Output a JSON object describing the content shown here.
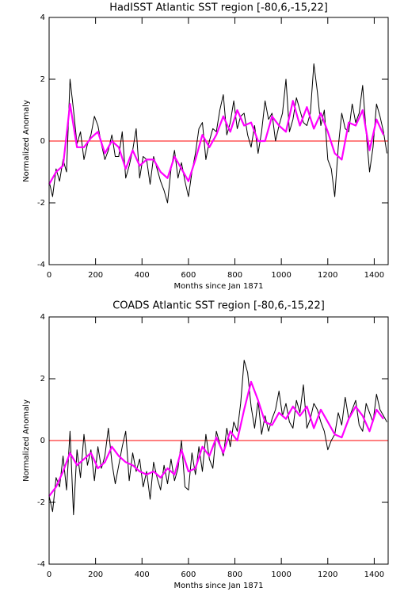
{
  "chart_data": [
    {
      "type": "line",
      "title": "HadISST Atlantic SST region [-80,6,-15,22]",
      "xlabel": "Months since Jan 1871",
      "ylabel": "Normalized Anomaly",
      "xlim": [
        0,
        1460
      ],
      "ylim": [
        -4,
        4
      ],
      "xticks": [
        0,
        200,
        400,
        600,
        800,
        1000,
        1200,
        1400
      ],
      "yticks": [
        -4,
        -2,
        0,
        2,
        4
      ],
      "hline": {
        "y": 0,
        "color": "#ff0000"
      },
      "series": [
        {
          "color": "#000000",
          "x": [
            0,
            15,
            30,
            45,
            60,
            75,
            90,
            105,
            120,
            135,
            150,
            165,
            180,
            195,
            210,
            225,
            240,
            255,
            270,
            285,
            300,
            315,
            330,
            345,
            360,
            375,
            390,
            405,
            420,
            435,
            450,
            465,
            480,
            495,
            510,
            525,
            540,
            555,
            570,
            585,
            600,
            615,
            630,
            645,
            660,
            675,
            690,
            705,
            720,
            735,
            750,
            765,
            780,
            795,
            810,
            825,
            840,
            855,
            870,
            885,
            900,
            915,
            930,
            945,
            960,
            975,
            990,
            1005,
            1020,
            1035,
            1050,
            1065,
            1080,
            1095,
            1110,
            1125,
            1140,
            1155,
            1170,
            1185,
            1200,
            1215,
            1230,
            1245,
            1260,
            1275,
            1290,
            1305,
            1320,
            1335,
            1350,
            1365,
            1380,
            1395,
            1410,
            1425,
            1440,
            1455
          ],
          "values": [
            -1.3,
            -1.8,
            -0.9,
            -1.3,
            -0.6,
            -1.0,
            2.0,
            1.0,
            -0.1,
            0.3,
            -0.6,
            -0.1,
            0.2,
            0.8,
            0.5,
            -0.1,
            -0.6,
            -0.3,
            0.2,
            -0.5,
            -0.5,
            0.3,
            -1.2,
            -0.8,
            -0.3,
            0.4,
            -1.2,
            -0.5,
            -0.6,
            -1.4,
            -0.5,
            -0.9,
            -1.3,
            -1.6,
            -2.0,
            -0.9,
            -0.3,
            -1.2,
            -0.7,
            -1.3,
            -1.8,
            -1.0,
            -0.4,
            0.4,
            0.6,
            -0.6,
            0.0,
            0.4,
            0.3,
            1.0,
            1.5,
            0.2,
            0.6,
            1.3,
            0.4,
            0.8,
            0.9,
            0.2,
            -0.2,
            0.5,
            -0.4,
            0.3,
            1.3,
            0.7,
            0.9,
            0.0,
            0.5,
            0.9,
            2.0,
            0.3,
            0.7,
            1.4,
            1.0,
            0.6,
            0.5,
            0.9,
            2.5,
            1.6,
            0.5,
            1.0,
            -0.6,
            -0.9,
            -1.8,
            -0.2,
            0.9,
            0.4,
            0.3,
            1.2,
            0.6,
            0.9,
            1.8,
            0.3,
            -1.0,
            -0.2,
            1.2,
            0.8,
            0.3,
            -0.4
          ]
        },
        {
          "color": "#ff00ff",
          "x": [
            0,
            30,
            60,
            90,
            120,
            150,
            180,
            210,
            240,
            270,
            300,
            330,
            360,
            390,
            420,
            450,
            480,
            510,
            540,
            570,
            600,
            630,
            660,
            690,
            720,
            750,
            780,
            810,
            840,
            870,
            900,
            930,
            960,
            990,
            1020,
            1050,
            1080,
            1110,
            1140,
            1170,
            1200,
            1230,
            1260,
            1290,
            1320,
            1350,
            1380,
            1410,
            1440
          ],
          "values": [
            -1.4,
            -1.0,
            -0.8,
            1.2,
            -0.2,
            -0.2,
            0.1,
            0.3,
            -0.4,
            0.0,
            -0.2,
            -0.9,
            -0.3,
            -0.8,
            -0.6,
            -0.6,
            -1.0,
            -1.2,
            -0.5,
            -0.9,
            -1.3,
            -0.6,
            0.2,
            -0.2,
            0.2,
            0.8,
            0.3,
            1.0,
            0.5,
            0.6,
            0.0,
            0.0,
            0.8,
            0.5,
            0.3,
            1.3,
            0.5,
            1.1,
            0.4,
            0.9,
            0.3,
            -0.4,
            -0.6,
            0.6,
            0.5,
            1.0,
            -0.3,
            0.7,
            0.2
          ]
        }
      ]
    },
    {
      "type": "line",
      "title": "COADS Atlantic SST region [-80,6,-15,22]",
      "xlabel": "Months since Jan 1871",
      "ylabel": "Normalized Anomaly",
      "xlim": [
        0,
        1460
      ],
      "ylim": [
        -4,
        4
      ],
      "xticks": [
        0,
        200,
        400,
        600,
        800,
        1000,
        1200,
        1400
      ],
      "yticks": [
        -4,
        -2,
        0,
        2,
        4
      ],
      "hline": {
        "y": 0,
        "color": "#ff0000"
      },
      "series": [
        {
          "color": "#000000",
          "x": [
            0,
            15,
            30,
            45,
            60,
            75,
            90,
            105,
            120,
            135,
            150,
            165,
            180,
            195,
            210,
            225,
            240,
            255,
            270,
            285,
            300,
            315,
            330,
            345,
            360,
            375,
            390,
            405,
            420,
            435,
            450,
            465,
            480,
            495,
            510,
            525,
            540,
            555,
            570,
            585,
            600,
            615,
            630,
            645,
            660,
            675,
            690,
            705,
            720,
            735,
            750,
            765,
            780,
            795,
            810,
            825,
            840,
            855,
            870,
            885,
            900,
            915,
            930,
            945,
            960,
            975,
            990,
            1005,
            1020,
            1035,
            1050,
            1065,
            1080,
            1095,
            1110,
            1125,
            1140,
            1155,
            1170,
            1185,
            1200,
            1215,
            1230,
            1245,
            1260,
            1275,
            1290,
            1305,
            1320,
            1335,
            1350,
            1365,
            1380,
            1395,
            1410,
            1425,
            1440,
            1455
          ],
          "values": [
            -1.8,
            -2.3,
            -1.2,
            -1.5,
            -0.5,
            -1.6,
            0.3,
            -2.4,
            -0.3,
            -1.2,
            0.2,
            -0.8,
            -0.3,
            -1.3,
            -0.2,
            -0.9,
            -0.5,
            0.4,
            -0.7,
            -1.4,
            -0.8,
            -0.2,
            0.3,
            -1.3,
            -0.4,
            -1.0,
            -0.6,
            -1.5,
            -1.0,
            -1.9,
            -0.7,
            -1.2,
            -1.6,
            -0.8,
            -1.4,
            -0.6,
            -1.3,
            -0.9,
            0.0,
            -1.5,
            -1.6,
            -0.4,
            -1.1,
            -0.2,
            -1.0,
            0.2,
            -0.6,
            -0.9,
            0.3,
            -0.1,
            -0.5,
            0.4,
            -0.2,
            0.6,
            0.3,
            1.2,
            2.6,
            2.2,
            1.1,
            0.4,
            1.3,
            0.2,
            0.8,
            0.3,
            0.7,
            1.0,
            1.6,
            0.8,
            1.2,
            0.6,
            0.4,
            1.3,
            0.9,
            1.8,
            0.4,
            0.7,
            1.2,
            1.0,
            0.6,
            0.3,
            -0.3,
            0.0,
            0.2,
            0.9,
            0.5,
            1.4,
            0.7,
            1.0,
            1.3,
            0.5,
            0.3,
            1.2,
            0.9,
            0.6,
            1.5,
            1.0,
            0.8,
            0.6
          ]
        },
        {
          "color": "#ff00ff",
          "x": [
            0,
            30,
            60,
            90,
            120,
            150,
            180,
            210,
            240,
            270,
            300,
            330,
            360,
            390,
            420,
            450,
            480,
            510,
            540,
            570,
            600,
            630,
            660,
            690,
            720,
            750,
            780,
            810,
            840,
            870,
            900,
            930,
            960,
            990,
            1020,
            1050,
            1080,
            1110,
            1140,
            1170,
            1200,
            1230,
            1260,
            1290,
            1320,
            1350,
            1380,
            1410,
            1440
          ],
          "values": [
            -1.8,
            -1.5,
            -1.0,
            -0.4,
            -0.8,
            -0.6,
            -0.4,
            -0.9,
            -0.7,
            -0.2,
            -0.5,
            -0.7,
            -0.8,
            -1.0,
            -1.1,
            -1.0,
            -1.2,
            -0.9,
            -1.1,
            -0.3,
            -1.0,
            -0.9,
            -0.2,
            -0.5,
            0.1,
            -0.4,
            0.3,
            0.0,
            1.0,
            1.9,
            1.3,
            0.6,
            0.5,
            0.9,
            0.7,
            1.1,
            0.8,
            1.1,
            0.4,
            1.0,
            0.6,
            0.2,
            0.1,
            0.7,
            1.1,
            0.8,
            0.3,
            1.0,
            0.7
          ]
        }
      ]
    }
  ]
}
